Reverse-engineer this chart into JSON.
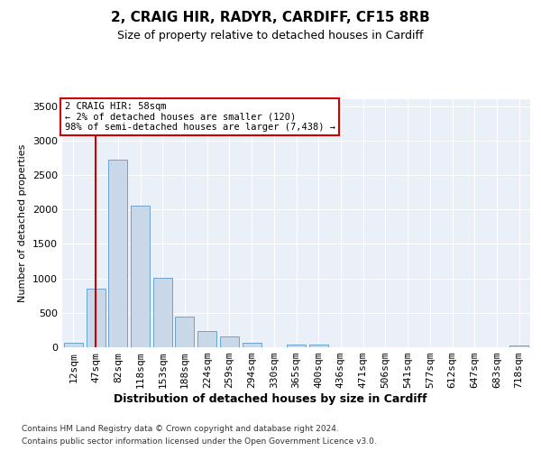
{
  "title1": "2, CRAIG HIR, RADYR, CARDIFF, CF15 8RB",
  "title2": "Size of property relative to detached houses in Cardiff",
  "xlabel": "Distribution of detached houses by size in Cardiff",
  "ylabel": "Number of detached properties",
  "categories": [
    "12sqm",
    "47sqm",
    "82sqm",
    "118sqm",
    "153sqm",
    "188sqm",
    "224sqm",
    "259sqm",
    "294sqm",
    "330sqm",
    "365sqm",
    "400sqm",
    "436sqm",
    "471sqm",
    "506sqm",
    "541sqm",
    "577sqm",
    "612sqm",
    "647sqm",
    "683sqm",
    "718sqm"
  ],
  "values": [
    60,
    850,
    2720,
    2060,
    1010,
    450,
    240,
    155,
    65,
    0,
    45,
    35,
    0,
    0,
    0,
    0,
    0,
    0,
    0,
    0,
    25
  ],
  "bar_color": "#c8d8e8",
  "bar_edge_color": "#5a9ac8",
  "vline_x": 1,
  "vline_color": "#cc0000",
  "annotation_text": "2 CRAIG HIR: 58sqm\n← 2% of detached houses are smaller (120)\n98% of semi-detached houses are larger (7,438) →",
  "annotation_box_color": "#ffffff",
  "annotation_box_edge": "#cc0000",
  "ylim": [
    0,
    3600
  ],
  "yticks": [
    0,
    500,
    1000,
    1500,
    2000,
    2500,
    3000,
    3500
  ],
  "plot_bg_color": "#eaf0f8",
  "footer1": "Contains HM Land Registry data © Crown copyright and database right 2024.",
  "footer2": "Contains public sector information licensed under the Open Government Licence v3.0.",
  "title1_fontsize": 11,
  "title2_fontsize": 9,
  "xlabel_fontsize": 9,
  "ylabel_fontsize": 8,
  "tick_fontsize": 8,
  "footer_fontsize": 6.5
}
